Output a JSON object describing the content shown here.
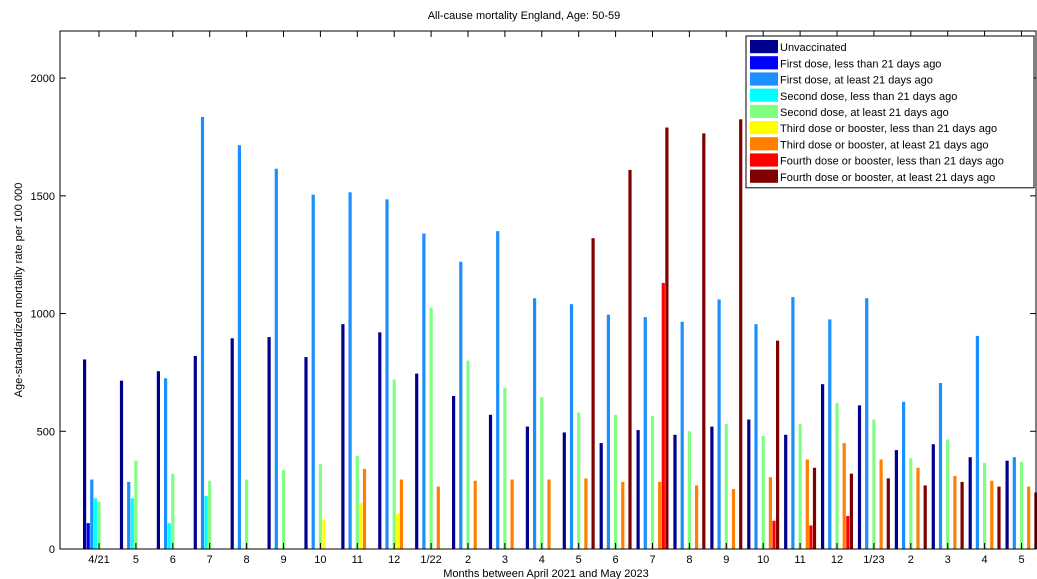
{
  "chart_data": {
    "type": "bar",
    "title": "All-cause mortality England, Age: 50-59",
    "xlabel": "Months between April 2021 and May 2023",
    "ylabel": "Age-standardized mortality rate per 100 000",
    "ylim": [
      0,
      2200
    ],
    "yticks": [
      0,
      500,
      1000,
      1500,
      2000
    ],
    "grid": false,
    "legend_position": "top-right",
    "categories": [
      "4/21",
      "5",
      "6",
      "7",
      "8",
      "9",
      "10",
      "11",
      "12",
      "1/22",
      "2",
      "3",
      "4",
      "5",
      "6",
      "7",
      "8",
      "9",
      "10",
      "11",
      "12",
      "1/23",
      "2",
      "3",
      "4",
      "5"
    ],
    "series": [
      {
        "name": "Unvaccinated",
        "color": "#00008f",
        "values": [
          805,
          715,
          755,
          820,
          895,
          900,
          815,
          955,
          920,
          745,
          650,
          570,
          520,
          495,
          450,
          505,
          485,
          520,
          550,
          485,
          700,
          610,
          420,
          445,
          390,
          375
        ]
      },
      {
        "name": "First dose, less than 21 days ago",
        "color": "#0000ff",
        "values": [
          110,
          0,
          0,
          0,
          0,
          0,
          0,
          0,
          0,
          0,
          0,
          0,
          0,
          0,
          0,
          0,
          0,
          0,
          0,
          0,
          0,
          0,
          0,
          0,
          0,
          0
        ]
      },
      {
        "name": "First dose, at least 21 days ago",
        "color": "#1c8fff",
        "values": [
          295,
          285,
          725,
          1835,
          1715,
          1615,
          1505,
          1515,
          1485,
          1340,
          1220,
          1350,
          1065,
          1040,
          995,
          985,
          965,
          1060,
          955,
          1070,
          975,
          1065,
          625,
          705,
          905,
          390
        ]
      },
      {
        "name": "Second dose, less than 21 days ago",
        "color": "#00ffff",
        "values": [
          215,
          215,
          110,
          225,
          0,
          0,
          0,
          0,
          0,
          0,
          0,
          0,
          0,
          0,
          0,
          0,
          0,
          0,
          0,
          0,
          0,
          0,
          0,
          0,
          0,
          0
        ]
      },
      {
        "name": "Second dose, at least 21 days ago",
        "color": "#80ff80",
        "values": [
          200,
          375,
          320,
          290,
          295,
          335,
          360,
          395,
          720,
          1025,
          800,
          685,
          645,
          580,
          570,
          565,
          500,
          530,
          480,
          530,
          620,
          550,
          385,
          465,
          365,
          370
        ]
      },
      {
        "name": "Third dose or booster, less than 21 days ago",
        "color": "#ffff00",
        "values": [
          0,
          0,
          0,
          0,
          0,
          0,
          125,
          195,
          150,
          0,
          0,
          0,
          0,
          0,
          0,
          0,
          0,
          0,
          0,
          0,
          0,
          0,
          0,
          0,
          0,
          0
        ]
      },
      {
        "name": "Third dose or booster, at least 21 days ago",
        "color": "#ff8000",
        "values": [
          0,
          0,
          0,
          0,
          0,
          0,
          0,
          340,
          295,
          265,
          290,
          295,
          295,
          300,
          285,
          285,
          270,
          255,
          305,
          380,
          450,
          380,
          345,
          310,
          290,
          265
        ]
      },
      {
        "name": "Fourth dose or booster, less than 21 days ago",
        "color": "#ff0000",
        "values": [
          0,
          0,
          0,
          0,
          0,
          0,
          0,
          0,
          0,
          0,
          0,
          0,
          0,
          0,
          0,
          1130,
          0,
          0,
          120,
          100,
          140,
          0,
          0,
          0,
          0,
          0
        ]
      },
      {
        "name": "Fourth dose or booster, at least 21 days ago",
        "color": "#800000",
        "values": [
          0,
          0,
          0,
          0,
          0,
          0,
          0,
          0,
          0,
          0,
          0,
          0,
          0,
          1320,
          1610,
          1790,
          1765,
          1825,
          885,
          345,
          320,
          300,
          270,
          285,
          265,
          240
        ]
      }
    ]
  }
}
